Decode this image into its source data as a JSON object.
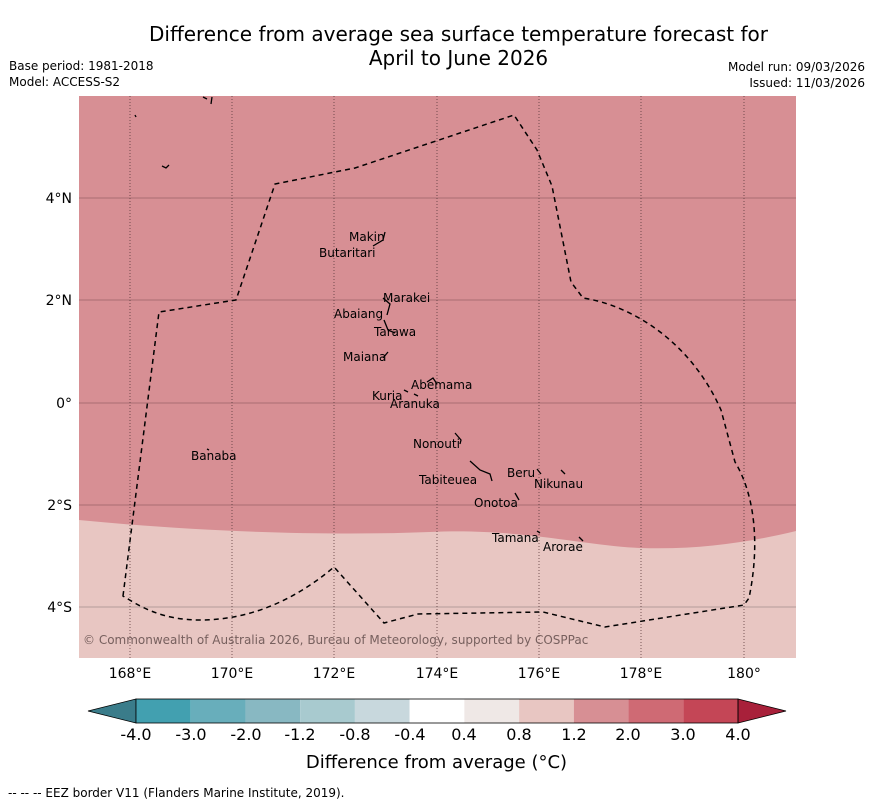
{
  "title_line1": "Difference from average sea surface temperature forecast for",
  "title_line2": "April to June 2026",
  "base_period": "Base period: 1981-2018",
  "model": "Model: ACCESS-S2",
  "model_run": "Model run: 09/03/2026",
  "issued": "Issued: 11/03/2026",
  "copyright": "© Commonwealth of Australia 2026, Bureau of Meteorology, supported by COSPPac",
  "lon_labels": [
    "168°E",
    "170°E",
    "172°E",
    "174°E",
    "176°E",
    "178°E",
    "180°"
  ],
  "lat_labels": [
    "4°N",
    "2°N",
    "0°",
    "2°S",
    "4°S"
  ],
  "islands": [
    "Makin",
    "Butaritari",
    "Marakei",
    "Abaiang",
    "Tarawa",
    "Maiana",
    "Abemama",
    "Kuria",
    "Aranuka",
    "Nonouti",
    "Banaba",
    "Tabiteuea",
    "Beru",
    "Nikunau",
    "Onotoa",
    "Tamana",
    "Arorae"
  ],
  "legend": {
    "title": "Difference from average (°C)",
    "ticks": [
      "-4.0",
      "-3.0",
      "-2.0",
      "-1.2",
      "-0.8",
      "-0.4",
      "0.4",
      "0.8",
      "1.2",
      "2.0",
      "3.0",
      "4.0"
    ],
    "colors": [
      "#3a7c8a",
      "#42a0b0",
      "#68aebb",
      "#88b8c2",
      "#a8cacf",
      "#c8d8dd",
      "#ffffff",
      "#efe8e6",
      "#e8c6c2",
      "#d78f94",
      "#cf6a74",
      "#c44656",
      "#a8203a"
    ]
  },
  "anomaly_regions": [
    {
      "name": "northern-area",
      "range": "1.2 to 2.0",
      "color": "#d78f94"
    },
    {
      "name": "southern-area",
      "range": "0.8 to 1.2",
      "color": "#e8c6c2"
    }
  ],
  "footnote": "-- -- -- EEZ border V11 (Flanders Marine Institute, 2019)."
}
